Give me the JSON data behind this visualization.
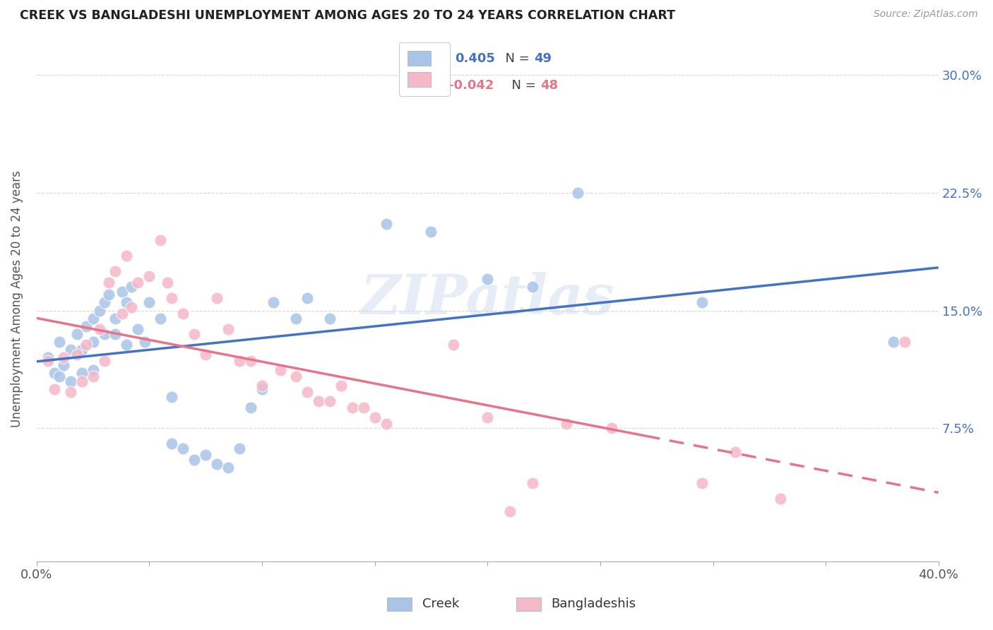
{
  "title": "CREEK VS BANGLADESHI UNEMPLOYMENT AMONG AGES 20 TO 24 YEARS CORRELATION CHART",
  "source": "Source: ZipAtlas.com",
  "ylabel": "Unemployment Among Ages 20 to 24 years",
  "yticks": [
    "7.5%",
    "15.0%",
    "22.5%",
    "30.0%"
  ],
  "ytick_values": [
    0.075,
    0.15,
    0.225,
    0.3
  ],
  "xmin": 0.0,
  "xmax": 0.4,
  "ymin": -0.01,
  "ymax": 0.325,
  "creek_color": "#a8c4e8",
  "bangladeshi_color": "#f5b8c8",
  "creek_line_color": "#4472c4",
  "bangladeshi_line_color": "#e8748a",
  "legend_creek_R": "0.405",
  "legend_creek_N": "49",
  "legend_bangladeshi_R": "-0.042",
  "legend_bangladeshi_N": "48",
  "watermark": "ZIPatlas",
  "creek_scatter_x": [
    0.005,
    0.008,
    0.01,
    0.01,
    0.012,
    0.015,
    0.015,
    0.018,
    0.02,
    0.02,
    0.022,
    0.025,
    0.025,
    0.025,
    0.028,
    0.03,
    0.03,
    0.032,
    0.035,
    0.035,
    0.038,
    0.04,
    0.04,
    0.042,
    0.045,
    0.048,
    0.05,
    0.055,
    0.06,
    0.06,
    0.065,
    0.07,
    0.075,
    0.08,
    0.085,
    0.09,
    0.095,
    0.1,
    0.105,
    0.115,
    0.12,
    0.13,
    0.155,
    0.175,
    0.2,
    0.22,
    0.24,
    0.295,
    0.38
  ],
  "creek_scatter_y": [
    0.12,
    0.11,
    0.13,
    0.108,
    0.115,
    0.125,
    0.105,
    0.135,
    0.125,
    0.11,
    0.14,
    0.145,
    0.13,
    0.112,
    0.15,
    0.155,
    0.135,
    0.16,
    0.145,
    0.135,
    0.162,
    0.155,
    0.128,
    0.165,
    0.138,
    0.13,
    0.155,
    0.145,
    0.095,
    0.065,
    0.062,
    0.055,
    0.058,
    0.052,
    0.05,
    0.062,
    0.088,
    0.1,
    0.155,
    0.145,
    0.158,
    0.145,
    0.205,
    0.2,
    0.17,
    0.165,
    0.225,
    0.155,
    0.13
  ],
  "bangladeshi_scatter_x": [
    0.005,
    0.008,
    0.012,
    0.015,
    0.018,
    0.02,
    0.022,
    0.025,
    0.028,
    0.03,
    0.032,
    0.035,
    0.038,
    0.04,
    0.042,
    0.045,
    0.05,
    0.055,
    0.058,
    0.06,
    0.065,
    0.07,
    0.075,
    0.08,
    0.085,
    0.09,
    0.095,
    0.1,
    0.108,
    0.115,
    0.12,
    0.125,
    0.13,
    0.135,
    0.14,
    0.145,
    0.15,
    0.155,
    0.185,
    0.2,
    0.21,
    0.22,
    0.235,
    0.255,
    0.295,
    0.31,
    0.33,
    0.385
  ],
  "bangladeshi_scatter_y": [
    0.118,
    0.1,
    0.12,
    0.098,
    0.122,
    0.105,
    0.128,
    0.108,
    0.138,
    0.118,
    0.168,
    0.175,
    0.148,
    0.185,
    0.152,
    0.168,
    0.172,
    0.195,
    0.168,
    0.158,
    0.148,
    0.135,
    0.122,
    0.158,
    0.138,
    0.118,
    0.118,
    0.102,
    0.112,
    0.108,
    0.098,
    0.092,
    0.092,
    0.102,
    0.088,
    0.088,
    0.082,
    0.078,
    0.128,
    0.082,
    0.022,
    0.04,
    0.078,
    0.075,
    0.04,
    0.06,
    0.03,
    0.13
  ],
  "background_color": "#ffffff",
  "grid_color": "#d8d8d8"
}
